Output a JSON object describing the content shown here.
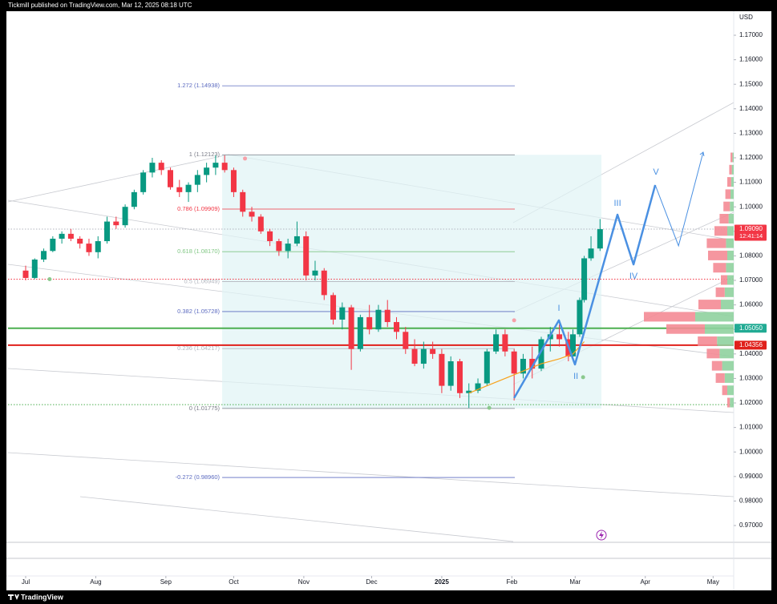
{
  "chart_data": {
    "type": "candlestick",
    "header": "Tickmill published on TradingView.com, Mar 12, 2025 08:18 UTC",
    "currency": "USD",
    "footer": "TradingView",
    "up_color": "#089981",
    "down_color": "#f23645",
    "xlim": [
      -7.8,
      313.1
    ],
    "ylim": [
      0.954,
      1.1798
    ],
    "xticks": [
      {
        "value": 0,
        "label": "Jul"
      },
      {
        "value": 31,
        "label": "Aug"
      },
      {
        "value": 62,
        "label": "Sep"
      },
      {
        "value": 92,
        "label": "Oct"
      },
      {
        "value": 123,
        "label": "Nov"
      },
      {
        "value": 153,
        "label": "Dec"
      },
      {
        "value": 184,
        "label": "2025"
      },
      {
        "value": 215,
        "label": "Feb"
      },
      {
        "value": 243,
        "label": "Mar"
      },
      {
        "value": 274,
        "label": "Apr"
      },
      {
        "value": 304,
        "label": "May"
      }
    ],
    "yticks": [
      {
        "value": 0.97,
        "label": "0.97000"
      },
      {
        "value": 0.98,
        "label": "0.98000"
      },
      {
        "value": 0.99,
        "label": "0.99000"
      },
      {
        "value": 1.0,
        "label": "1.00000"
      },
      {
        "value": 1.01,
        "label": "1.01000"
      },
      {
        "value": 1.02,
        "label": "1.02000"
      },
      {
        "value": 1.03,
        "label": "1.03000"
      },
      {
        "value": 1.04,
        "label": "1.04000"
      },
      {
        "value": 1.05,
        "label": "1.05000"
      },
      {
        "value": 1.06,
        "label": "1.06000"
      },
      {
        "value": 1.07,
        "label": "1.07000"
      },
      {
        "value": 1.08,
        "label": "1.08000"
      },
      {
        "value": 1.09,
        "label": "1.09000"
      },
      {
        "value": 1.1,
        "label": "1.10000"
      },
      {
        "value": 1.11,
        "label": "1.11000"
      },
      {
        "value": 1.12,
        "label": "1.12000"
      },
      {
        "value": 1.13,
        "label": "1.13000"
      },
      {
        "value": 1.14,
        "label": "1.14000"
      },
      {
        "value": 1.15,
        "label": "1.15000"
      },
      {
        "value": 1.16,
        "label": "1.16000"
      },
      {
        "value": 1.17,
        "label": "1.17000"
      }
    ],
    "x": [
      0,
      4,
      8,
      12,
      16,
      20,
      24,
      28,
      32,
      36,
      40,
      44,
      48,
      52,
      56,
      60,
      64,
      68,
      72,
      76,
      80,
      84,
      88,
      92,
      96,
      100,
      104,
      108,
      112,
      116,
      120,
      124,
      128,
      132,
      136,
      140,
      144,
      148,
      152,
      156,
      160,
      164,
      168,
      172,
      176,
      180,
      184,
      188,
      192,
      196,
      200,
      204,
      208,
      212,
      216,
      220,
      224,
      228,
      232,
      236,
      240,
      242,
      245,
      247,
      250,
      254
    ],
    "open": [
      1.074,
      1.071,
      1.0785,
      1.082,
      1.087,
      1.089,
      1.087,
      1.085,
      1.0815,
      1.086,
      1.094,
      1.0925,
      1.1,
      1.106,
      1.114,
      1.118,
      1.115,
      1.108,
      1.106,
      1.109,
      1.113,
      1.116,
      1.118,
      1.115,
      1.106,
      1.098,
      1.096,
      1.09,
      1.086,
      1.082,
      1.085,
      1.088,
      1.072,
      1.074,
      1.064,
      1.054,
      1.059,
      1.042,
      1.055,
      1.05,
      1.058,
      1.053,
      1.049,
      1.042,
      1.036,
      1.042,
      1.04,
      1.027,
      1.037,
      1.024,
      1.025,
      1.028,
      1.041,
      1.048,
      1.041,
      1.032,
      1.038,
      1.034,
      1.046,
      1.048,
      1.046,
      1.039,
      1.048,
      1.062,
      1.079,
      1.083
    ],
    "high": [
      1.076,
      1.079,
      1.083,
      1.088,
      1.09,
      1.091,
      1.088,
      1.087,
      1.088,
      1.096,
      1.096,
      1.101,
      1.107,
      1.115,
      1.12,
      1.119,
      1.116,
      1.111,
      1.11,
      1.115,
      1.118,
      1.121,
      1.121,
      1.116,
      1.107,
      1.1,
      1.097,
      1.091,
      1.087,
      1.087,
      1.094,
      1.09,
      1.078,
      1.075,
      1.065,
      1.061,
      1.06,
      1.056,
      1.06,
      1.06,
      1.062,
      1.055,
      1.051,
      1.046,
      1.045,
      1.045,
      1.042,
      1.039,
      1.038,
      1.028,
      1.03,
      1.042,
      1.05,
      1.05,
      1.042,
      1.04,
      1.043,
      1.047,
      1.051,
      1.052,
      1.049,
      1.05,
      1.063,
      1.08,
      1.088,
      1.095
    ],
    "low": [
      1.07,
      1.0705,
      1.0775,
      1.0815,
      1.085,
      1.086,
      1.083,
      1.08,
      1.079,
      1.085,
      1.091,
      1.0915,
      1.099,
      1.105,
      1.112,
      1.113,
      1.107,
      1.104,
      1.102,
      1.106,
      1.11,
      1.113,
      1.114,
      1.104,
      1.096,
      1.094,
      1.089,
      1.084,
      1.08,
      1.079,
      1.084,
      1.07,
      1.07,
      1.062,
      1.052,
      1.05,
      1.0335,
      1.041,
      1.048,
      1.049,
      1.051,
      1.046,
      1.04,
      1.035,
      1.034,
      1.038,
      1.024,
      1.025,
      1.022,
      1.018,
      1.024,
      1.027,
      1.04,
      1.039,
      1.021,
      1.03,
      1.03,
      1.033,
      1.041,
      1.043,
      1.037,
      1.038,
      1.047,
      1.061,
      1.078,
      1.082
    ],
    "close": [
      1.071,
      1.0785,
      1.082,
      1.087,
      1.089,
      1.087,
      1.085,
      1.0815,
      1.086,
      1.094,
      1.0925,
      1.1,
      1.106,
      1.114,
      1.118,
      1.115,
      1.108,
      1.106,
      1.109,
      1.113,
      1.116,
      1.118,
      1.115,
      1.106,
      1.098,
      1.096,
      1.09,
      1.086,
      1.082,
      1.085,
      1.088,
      1.072,
      1.074,
      1.064,
      1.054,
      1.059,
      1.042,
      1.055,
      1.05,
      1.058,
      1.053,
      1.049,
      1.042,
      1.036,
      1.042,
      1.04,
      1.027,
      1.037,
      1.024,
      1.025,
      1.028,
      1.041,
      1.048,
      1.041,
      1.032,
      1.038,
      1.034,
      1.046,
      1.048,
      1.046,
      1.039,
      1.048,
      1.062,
      1.079,
      1.083,
      1.0909
    ],
    "moving_average": {
      "color": "#f7a21b",
      "x": [
        196,
        204,
        212,
        220,
        228,
        236,
        242,
        247
      ],
      "values": [
        1.024,
        1.027,
        1.03,
        1.033,
        1.036,
        1.038,
        1.04,
        1.045
      ]
    },
    "fib": {
      "x_start": 86.9,
      "x_end": 216.3,
      "box_x_end": 254.6,
      "box_color": "#e0f4f5",
      "levels": [
        {
          "value": 1.14938,
          "label": "1.272 (1.14938)",
          "color": "#5c6bc0"
        },
        {
          "value": 1.12123,
          "label": "1 (1.12123)",
          "color": "#787b86"
        },
        {
          "value": 1.09909,
          "label": "0.786 (1.09909)",
          "color": "#f23645"
        },
        {
          "value": 1.0817,
          "label": "0.618 (1.08170)",
          "color": "#81c784"
        },
        {
          "value": 1.06949,
          "label": "0.5 (1.06949)",
          "color": "#b2b5be"
        },
        {
          "value": 1.05728,
          "label": "0.382 (1.05728)",
          "color": "#5c6bc0"
        },
        {
          "value": 1.04217,
          "label": "0.236 (1.04217)",
          "color": "#b2b5be"
        },
        {
          "value": 1.01775,
          "label": "0 (1.01775)",
          "color": "#787b86"
        },
        {
          "value": 0.9896,
          "label": "-0.272 (0.98960)",
          "color": "#5c6bc0"
        }
      ]
    },
    "horizontal_lines": [
      {
        "value": 1.0505,
        "color": "#4caf50",
        "style": "solid"
      },
      {
        "value": 1.04356,
        "color": "#e0201b",
        "style": "solid"
      },
      {
        "value": 1.0705,
        "color": "#f23645",
        "style": "dotted"
      },
      {
        "value": 1.0193,
        "color": "#4caf50",
        "style": "dotted"
      },
      {
        "value": 1.0909,
        "color": "#b2b5be",
        "style": "dotted"
      }
    ],
    "price_tags": [
      {
        "value": 1.0909,
        "label": "1.09090",
        "sublabel": "12:41:14",
        "color": "#f23645"
      },
      {
        "value": 1.0505,
        "label": "1.05050",
        "color": "#22ab94"
      },
      {
        "value": 1.04356,
        "label": "1.04356",
        "color": "#e0201b"
      }
    ],
    "markers": [
      {
        "x": 97,
        "y": 1.1197,
        "color": "#f7a0a8"
      },
      {
        "x": 10.6,
        "y": 1.0705,
        "color": "#8bc98e"
      },
      {
        "x": 205,
        "y": 1.018,
        "color": "#8bc98e"
      },
      {
        "x": 216,
        "y": 1.0537,
        "color": "#f7a0a8"
      },
      {
        "x": 246.5,
        "y": 1.0305,
        "color": "#8bc98e"
      }
    ],
    "wave": {
      "color": "#4a90e2",
      "x": [
        216,
        235.8,
        242.9,
        261.7,
        268.8,
        278.4,
        288.7,
        299.6
      ],
      "values": [
        1.022,
        1.0537,
        1.0357,
        1.0968,
        1.0765,
        1.1089,
        1.0841,
        1.1223
      ],
      "labels": [
        {
          "label": "I",
          "x": 235.8,
          "y": 1.0586
        },
        {
          "label": "II",
          "x": 243.3,
          "y": 1.0308
        },
        {
          "label": "III",
          "x": 261.7,
          "y": 1.1014
        },
        {
          "label": "IV",
          "x": 268.8,
          "y": 1.0716
        },
        {
          "label": "V",
          "x": 278.7,
          "y": 1.1141
        }
      ]
    },
    "volume_profile": {
      "buy_color": "#8fd19e",
      "sell_color": "#f48b95",
      "prices": [
        1.02,
        1.025,
        1.03,
        1.035,
        1.04,
        1.045,
        1.05,
        1.055,
        1.06,
        1.065,
        1.07,
        1.075,
        1.08,
        1.085,
        1.09,
        1.095,
        1.1,
        1.105,
        1.11,
        1.115,
        1.12
      ],
      "buy": [
        6,
        10,
        14,
        18,
        22,
        26,
        45,
        60,
        20,
        14,
        10,
        12,
        10,
        12,
        10,
        8,
        6,
        5,
        4,
        3,
        2
      ],
      "sell": [
        4,
        8,
        14,
        16,
        20,
        30,
        60,
        80,
        35,
        14,
        10,
        20,
        30,
        30,
        20,
        14,
        10,
        8,
        6,
        4,
        3
      ]
    }
  }
}
